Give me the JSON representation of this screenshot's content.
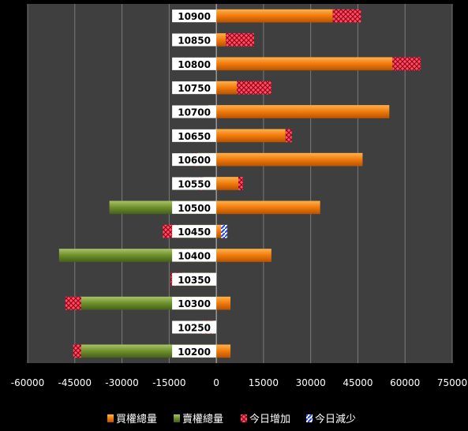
{
  "chart_data": {
    "type": "bar",
    "orientation": "horizontal",
    "stacked": true,
    "categories": [
      "10900",
      "10850",
      "10800",
      "10750",
      "10700",
      "10650",
      "10600",
      "10550",
      "10500",
      "10450",
      "10400",
      "10350",
      "10300",
      "10250",
      "10200"
    ],
    "series": [
      {
        "name": "買權總量",
        "color": "#f07f10",
        "values": [
          37000,
          3000,
          56000,
          6500,
          55000,
          22000,
          46500,
          7000,
          33000,
          1500,
          17500,
          0,
          4500,
          0,
          4500
        ]
      },
      {
        "name": "賣權總量",
        "color": "#6b8e23",
        "values": [
          0,
          0,
          0,
          0,
          -2500,
          -500,
          -6000,
          -4000,
          -34000,
          -12000,
          -50000,
          -11000,
          -43000,
          -1000,
          -43000
        ]
      },
      {
        "name": "今日增加",
        "color": "#ff5a6e",
        "values": [
          [
            0,
            9000
          ],
          [
            0,
            9000
          ],
          [
            0,
            9000
          ],
          [
            0,
            11000
          ],
          [
            0,
            0
          ],
          [
            0,
            2000
          ],
          [
            -1000,
            0
          ],
          [
            -1500,
            1500
          ],
          [
            0,
            0
          ],
          [
            -5000,
            0
          ],
          [
            0,
            0
          ],
          [
            -3500,
            0
          ],
          [
            -5000,
            0
          ],
          [
            -3500,
            0
          ],
          [
            -2500,
            0
          ]
        ]
      },
      {
        "name": "今日減少",
        "color": "#2040ff",
        "values": [
          [
            0,
            0
          ],
          [
            0,
            0
          ],
          [
            0,
            0
          ],
          [
            0,
            0
          ],
          [
            0,
            0
          ],
          [
            0,
            0
          ],
          [
            0,
            0
          ],
          [
            0,
            0
          ],
          [
            0,
            0
          ],
          [
            0,
            2000
          ],
          [
            0,
            0
          ],
          [
            0,
            0
          ],
          [
            0,
            0
          ],
          [
            0,
            0
          ],
          [
            0,
            0
          ]
        ]
      }
    ],
    "xlim": [
      -60000,
      75000
    ],
    "xticks": [
      "-60000",
      "-45000",
      "-30000",
      "-15000",
      "0",
      "15000",
      "30000",
      "45000",
      "60000",
      "75000"
    ],
    "grid": true,
    "legend_position": "bottom"
  },
  "legend": {
    "call_total": "買權總量",
    "put_total": "賣權總量",
    "today_increase": "今日增加",
    "today_decrease": "今日減少"
  }
}
